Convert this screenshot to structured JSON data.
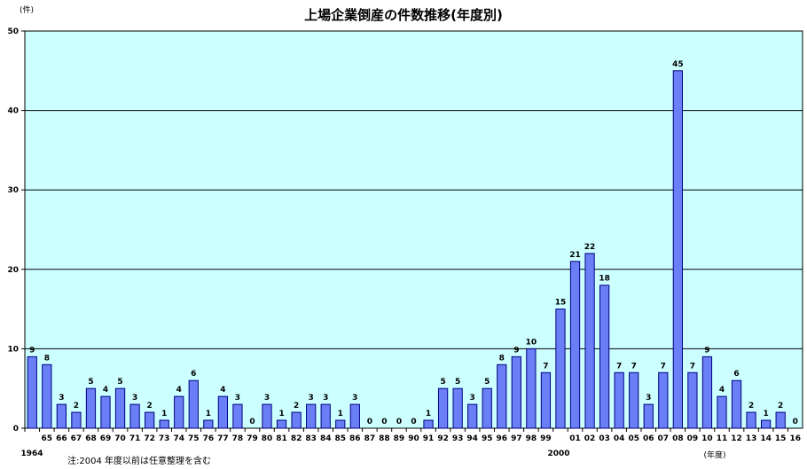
{
  "chart_data": {
    "type": "bar",
    "title": "上場企業倒産の件数推移(年度別)",
    "y_unit_label": "(件)",
    "x_unit_label": "(年度)",
    "note": "注:2004 年度以前は任意整理を含む",
    "year_markers": {
      "1964": "1964",
      "2000": "2000"
    },
    "ylim": [
      0,
      50
    ],
    "yticks": [
      0,
      10,
      20,
      30,
      40,
      50
    ],
    "grid": true,
    "colors": {
      "background": "#ccffff",
      "bar": "#6a7ff5",
      "bar_edge": "#000080",
      "grid": "#000000"
    },
    "categories": [
      "64",
      "65",
      "66",
      "67",
      "68",
      "69",
      "70",
      "71",
      "72",
      "73",
      "74",
      "75",
      "76",
      "77",
      "78",
      "79",
      "80",
      "81",
      "82",
      "83",
      "84",
      "85",
      "86",
      "87",
      "88",
      "89",
      "90",
      "91",
      "92",
      "93",
      "94",
      "95",
      "96",
      "97",
      "98",
      "99",
      "00",
      "01",
      "02",
      "03",
      "04",
      "05",
      "06",
      "07",
      "08",
      "09",
      "10",
      "11",
      "12",
      "13",
      "14",
      "15",
      "16"
    ],
    "tick_labels": [
      "",
      "65",
      "66",
      "67",
      "68",
      "69",
      "70",
      "71",
      "72",
      "73",
      "74",
      "75",
      "76",
      "77",
      "78",
      "79",
      "80",
      "81",
      "82",
      "83",
      "84",
      "85",
      "86",
      "87",
      "88",
      "89",
      "90",
      "91",
      "92",
      "93",
      "94",
      "95",
      "96",
      "97",
      "98",
      "99",
      "",
      "01",
      "02",
      "03",
      "04",
      "05",
      "06",
      "07",
      "08",
      "09",
      "10",
      "11",
      "12",
      "13",
      "14",
      "15",
      "16"
    ],
    "values": [
      9,
      8,
      3,
      2,
      5,
      4,
      5,
      3,
      2,
      1,
      4,
      6,
      1,
      4,
      3,
      0,
      3,
      1,
      2,
      3,
      3,
      1,
      3,
      0,
      0,
      0,
      0,
      1,
      5,
      5,
      3,
      5,
      8,
      9,
      10,
      7,
      15,
      21,
      22,
      18,
      7,
      7,
      3,
      7,
      45,
      7,
      9,
      4,
      6,
      2,
      1,
      2,
      0
    ]
  }
}
